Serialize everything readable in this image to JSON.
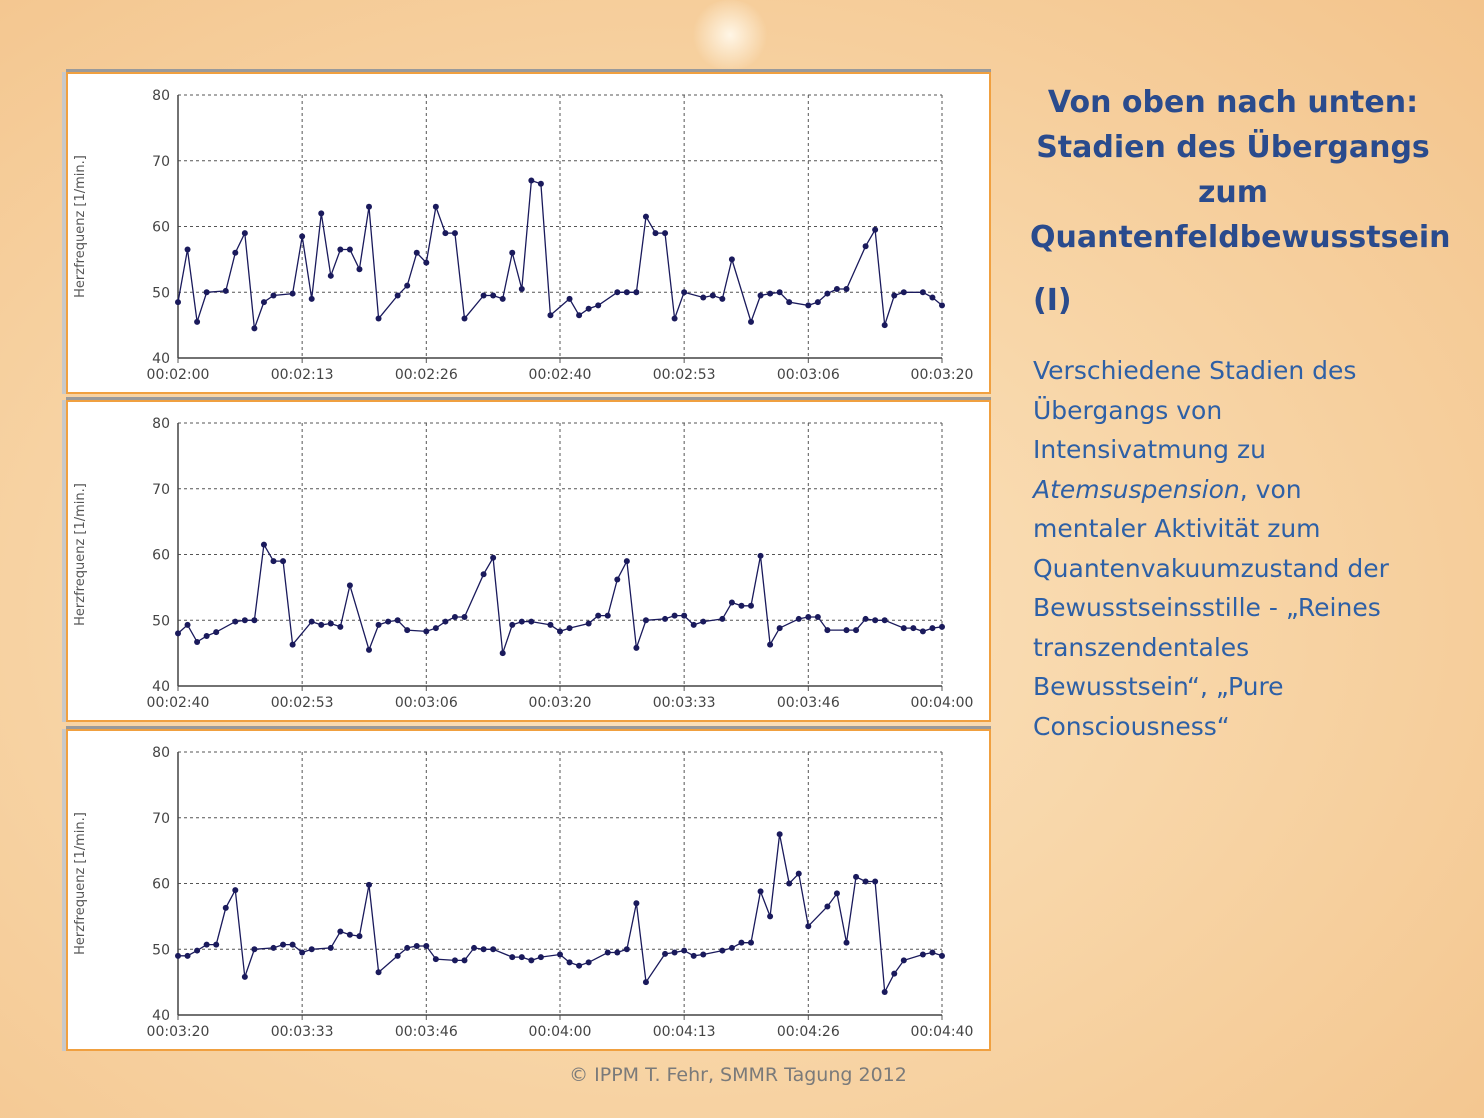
{
  "title_lines": [
    "Von oben nach unten:",
    "Stadien des Übergangs",
    "zum",
    "Quantenfeldbewusstsein"
  ],
  "roman": "(I)",
  "body": {
    "l0": "Verschiedene Stadien des",
    "l1": "Übergangs von",
    "l2": "Intensivatmung zu",
    "l3_italic": "Atemsuspension",
    "l3_rest": ", von",
    "l4": "mentaler Aktivität zum",
    "l5": "Quantenvakuumzustand der",
    "l6": "Bewusstseinsstille - „Reines",
    "l7": "transzendentales",
    "l8": "Bewusstsein“, „Pure",
    "l9": "Consciousness“"
  },
  "footer": "© IPPM T. Fehr, SMMR Tagung 2012",
  "colors": {
    "line": "#1a1a5c",
    "panel_border": "#f0a040",
    "title": "#2a4b8d",
    "body": "#2e60a6"
  },
  "chart_data": [
    {
      "type": "line",
      "ylabel": "Herzfrequenz [1/min.]",
      "ylim": [
        40,
        80
      ],
      "yticks": [
        "40",
        "50",
        "60",
        "70",
        "80"
      ],
      "xlim": [
        "00:02:00",
        "00:03:20"
      ],
      "xticks": [
        "00:02:00",
        "00:02:13",
        "00:02:26",
        "00:02:40",
        "00:02:53",
        "00:03:06",
        "00:03:20"
      ],
      "grid": true,
      "points": [
        [
          "00:02:00",
          48.5
        ],
        [
          "00:02:01",
          56.5
        ],
        [
          "00:02:02",
          45.5
        ],
        [
          "00:02:03",
          50
        ],
        [
          "00:02:05",
          50.2
        ],
        [
          "00:02:06",
          56
        ],
        [
          "00:02:07",
          59
        ],
        [
          "00:02:08",
          44.5
        ],
        [
          "00:02:09",
          48.5
        ],
        [
          "00:02:10",
          49.5
        ],
        [
          "00:02:12",
          49.8
        ],
        [
          "00:02:13",
          58.5
        ],
        [
          "00:02:14",
          49
        ],
        [
          "00:02:15",
          62
        ],
        [
          "00:02:16",
          52.5
        ],
        [
          "00:02:17",
          56.5
        ],
        [
          "00:02:18",
          56.5
        ],
        [
          "00:02:19",
          53.5
        ],
        [
          "00:02:20",
          63
        ],
        [
          "00:02:21",
          46
        ],
        [
          "00:02:23",
          49.5
        ],
        [
          "00:02:24",
          51
        ],
        [
          "00:02:25",
          56
        ],
        [
          "00:02:26",
          54.5
        ],
        [
          "00:02:27",
          63
        ],
        [
          "00:02:28",
          59
        ],
        [
          "00:02:29",
          59
        ],
        [
          "00:02:30",
          46
        ],
        [
          "00:02:32",
          49.5
        ],
        [
          "00:02:33",
          49.5
        ],
        [
          "00:02:34",
          49
        ],
        [
          "00:02:35",
          56
        ],
        [
          "00:02:36",
          50.5
        ],
        [
          "00:02:37",
          67
        ],
        [
          "00:02:38",
          66.5
        ],
        [
          "00:02:39",
          46.5
        ],
        [
          "00:02:41",
          49
        ],
        [
          "00:02:42",
          46.5
        ],
        [
          "00:02:43",
          47.5
        ],
        [
          "00:02:44",
          48
        ],
        [
          "00:02:46",
          50
        ],
        [
          "00:02:47",
          50
        ],
        [
          "00:02:48",
          50
        ],
        [
          "00:02:49",
          61.5
        ],
        [
          "00:02:50",
          59
        ],
        [
          "00:02:51",
          59
        ],
        [
          "00:02:52",
          46
        ],
        [
          "00:02:53",
          50
        ],
        [
          "00:02:55",
          49.2
        ],
        [
          "00:02:56",
          49.5
        ],
        [
          "00:02:57",
          49
        ],
        [
          "00:02:58",
          55
        ],
        [
          "00:03:00",
          45.5
        ],
        [
          "00:03:01",
          49.5
        ],
        [
          "00:03:02",
          49.8
        ],
        [
          "00:03:03",
          50
        ],
        [
          "00:03:04",
          48.5
        ],
        [
          "00:03:06",
          48
        ],
        [
          "00:03:07",
          48.5
        ],
        [
          "00:03:08",
          49.8
        ],
        [
          "00:03:09",
          50.5
        ],
        [
          "00:03:10",
          50.5
        ],
        [
          "00:03:12",
          57
        ],
        [
          "00:03:13",
          59.5
        ],
        [
          "00:03:14",
          45
        ],
        [
          "00:03:15",
          49.5
        ],
        [
          "00:03:16",
          50
        ],
        [
          "00:03:18",
          50
        ],
        [
          "00:03:19",
          49.2
        ],
        [
          "00:03:20",
          48
        ]
      ]
    },
    {
      "type": "line",
      "ylabel": "Herzfrequenz [1/min.]",
      "ylim": [
        40,
        80
      ],
      "yticks": [
        "40",
        "50",
        "60",
        "70",
        "80"
      ],
      "xlim": [
        "00:02:40",
        "00:04:00"
      ],
      "xticks": [
        "00:02:40",
        "00:02:53",
        "00:03:06",
        "00:03:20",
        "00:03:33",
        "00:03:46",
        "00:04:00"
      ],
      "grid": true,
      "points": [
        [
          "00:02:40",
          48
        ],
        [
          "00:02:41",
          49.3
        ],
        [
          "00:02:42",
          46.7
        ],
        [
          "00:02:43",
          47.6
        ],
        [
          "00:02:44",
          48.2
        ],
        [
          "00:02:46",
          49.8
        ],
        [
          "00:02:47",
          50
        ],
        [
          "00:02:48",
          50
        ],
        [
          "00:02:49",
          61.5
        ],
        [
          "00:02:50",
          59
        ],
        [
          "00:02:51",
          59
        ],
        [
          "00:02:52",
          46.3
        ],
        [
          "00:02:54",
          49.8
        ],
        [
          "00:02:55",
          49.3
        ],
        [
          "00:02:56",
          49.5
        ],
        [
          "00:02:57",
          49
        ],
        [
          "00:02:58",
          55.3
        ],
        [
          "00:03:00",
          45.5
        ],
        [
          "00:03:01",
          49.3
        ],
        [
          "00:03:02",
          49.8
        ],
        [
          "00:03:03",
          50
        ],
        [
          "00:03:04",
          48.5
        ],
        [
          "00:03:06",
          48.3
        ],
        [
          "00:03:07",
          48.8
        ],
        [
          "00:03:08",
          49.8
        ],
        [
          "00:03:09",
          50.5
        ],
        [
          "00:03:10",
          50.5
        ],
        [
          "00:03:12",
          57
        ],
        [
          "00:03:13",
          59.5
        ],
        [
          "00:03:14",
          45
        ],
        [
          "00:03:15",
          49.3
        ],
        [
          "00:03:16",
          49.8
        ],
        [
          "00:03:17",
          49.8
        ],
        [
          "00:03:19",
          49.3
        ],
        [
          "00:03:20",
          48.3
        ],
        [
          "00:03:21",
          48.8
        ],
        [
          "00:03:23",
          49.5
        ],
        [
          "00:03:24",
          50.7
        ],
        [
          "00:03:25",
          50.7
        ],
        [
          "00:03:26",
          56.2
        ],
        [
          "00:03:27",
          59
        ],
        [
          "00:03:28",
          45.8
        ],
        [
          "00:03:29",
          50
        ],
        [
          "00:03:31",
          50.2
        ],
        [
          "00:03:32",
          50.7
        ],
        [
          "00:03:33",
          50.7
        ],
        [
          "00:03:34",
          49.3
        ],
        [
          "00:03:35",
          49.8
        ],
        [
          "00:03:37",
          50.2
        ],
        [
          "00:03:38",
          52.7
        ],
        [
          "00:03:39",
          52.2
        ],
        [
          "00:03:40",
          52.2
        ],
        [
          "00:03:41",
          59.8
        ],
        [
          "00:03:42",
          46.3
        ],
        [
          "00:03:43",
          48.8
        ],
        [
          "00:03:45",
          50.2
        ],
        [
          "00:03:46",
          50.5
        ],
        [
          "00:03:47",
          50.5
        ],
        [
          "00:03:48",
          48.5
        ],
        [
          "00:03:50",
          48.5
        ],
        [
          "00:03:51",
          48.5
        ],
        [
          "00:03:52",
          50.2
        ],
        [
          "00:03:53",
          50
        ],
        [
          "00:03:54",
          50
        ],
        [
          "00:03:56",
          48.8
        ],
        [
          "00:03:57",
          48.8
        ],
        [
          "00:03:58",
          48.3
        ],
        [
          "00:03:59",
          48.8
        ],
        [
          "00:04:00",
          49
        ]
      ]
    },
    {
      "type": "line",
      "ylabel": "Herzfrequenz [1/min.]",
      "ylim": [
        40,
        80
      ],
      "yticks": [
        "40",
        "50",
        "60",
        "70",
        "80"
      ],
      "xlim": [
        "00:03:20",
        "00:04:40"
      ],
      "xticks": [
        "00:03:20",
        "00:03:33",
        "00:03:46",
        "00:04:00",
        "00:04:13",
        "00:04:26",
        "00:04:40"
      ],
      "grid": true,
      "points": [
        [
          "00:03:20",
          49
        ],
        [
          "00:03:21",
          49
        ],
        [
          "00:03:22",
          49.8
        ],
        [
          "00:03:23",
          50.7
        ],
        [
          "00:03:24",
          50.7
        ],
        [
          "00:03:25",
          56.3
        ],
        [
          "00:03:26",
          59
        ],
        [
          "00:03:27",
          45.8
        ],
        [
          "00:03:28",
          50
        ],
        [
          "00:03:30",
          50.2
        ],
        [
          "00:03:31",
          50.7
        ],
        [
          "00:03:32",
          50.7
        ],
        [
          "00:03:33",
          49.5
        ],
        [
          "00:03:34",
          50
        ],
        [
          "00:03:36",
          50.2
        ],
        [
          "00:03:37",
          52.7
        ],
        [
          "00:03:38",
          52.2
        ],
        [
          "00:03:39",
          52
        ],
        [
          "00:03:40",
          59.8
        ],
        [
          "00:03:41",
          46.5
        ],
        [
          "00:03:43",
          49
        ],
        [
          "00:03:44",
          50.2
        ],
        [
          "00:03:45",
          50.5
        ],
        [
          "00:03:46",
          50.5
        ],
        [
          "00:03:47",
          48.5
        ],
        [
          "00:03:49",
          48.3
        ],
        [
          "00:03:50",
          48.3
        ],
        [
          "00:03:51",
          50.2
        ],
        [
          "00:03:52",
          50
        ],
        [
          "00:03:53",
          50
        ],
        [
          "00:03:55",
          48.8
        ],
        [
          "00:03:56",
          48.8
        ],
        [
          "00:03:57",
          48.3
        ],
        [
          "00:03:58",
          48.8
        ],
        [
          "00:04:00",
          49.2
        ],
        [
          "00:04:01",
          48
        ],
        [
          "00:04:02",
          47.5
        ],
        [
          "00:04:03",
          48
        ],
        [
          "00:04:05",
          49.5
        ],
        [
          "00:04:06",
          49.5
        ],
        [
          "00:04:07",
          50
        ],
        [
          "00:04:08",
          57
        ],
        [
          "00:04:09",
          45
        ],
        [
          "00:04:11",
          49.3
        ],
        [
          "00:04:12",
          49.5
        ],
        [
          "00:04:13",
          49.8
        ],
        [
          "00:04:14",
          49
        ],
        [
          "00:04:15",
          49.2
        ],
        [
          "00:04:17",
          49.8
        ],
        [
          "00:04:18",
          50.2
        ],
        [
          "00:04:19",
          51
        ],
        [
          "00:04:20",
          51
        ],
        [
          "00:04:21",
          58.8
        ],
        [
          "00:04:22",
          55
        ],
        [
          "00:04:23",
          67.5
        ],
        [
          "00:04:24",
          60
        ],
        [
          "00:04:25",
          61.5
        ],
        [
          "00:04:26",
          53.5
        ],
        [
          "00:04:28",
          56.5
        ],
        [
          "00:04:29",
          58.5
        ],
        [
          "00:04:30",
          51
        ],
        [
          "00:04:31",
          61
        ],
        [
          "00:04:32",
          60.3
        ],
        [
          "00:04:33",
          60.3
        ],
        [
          "00:04:34",
          43.5
        ],
        [
          "00:04:35",
          46.3
        ],
        [
          "00:04:36",
          48.3
        ],
        [
          "00:04:38",
          49.2
        ],
        [
          "00:04:39",
          49.5
        ],
        [
          "00:04:40",
          49
        ]
      ]
    }
  ]
}
